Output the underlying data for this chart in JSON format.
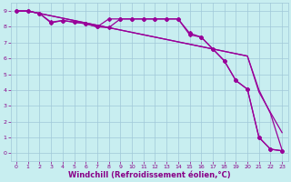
{
  "xlabel": "Windchill (Refroidissement éolien,°C)",
  "xlim": [
    -0.5,
    23.5
  ],
  "ylim": [
    -0.5,
    9.5
  ],
  "xticks": [
    0,
    1,
    2,
    3,
    4,
    5,
    6,
    7,
    8,
    9,
    10,
    11,
    12,
    13,
    14,
    15,
    16,
    17,
    18,
    19,
    20,
    21,
    22,
    23
  ],
  "yticks": [
    0,
    1,
    2,
    3,
    4,
    5,
    6,
    7,
    8,
    9
  ],
  "background_color": "#c8eef0",
  "grid_color": "#a0c8d8",
  "line_color": "#990099",
  "marker": "D",
  "markersize": 2.0,
  "linewidth": 0.9,
  "tick_fontsize": 4.5,
  "label_fontsize": 6.0,
  "tick_color": "#880088",
  "label_color": "#880088",
  "line_straight1": [
    9,
    9,
    8.85,
    8.7,
    8.55,
    8.4,
    8.25,
    8.1,
    7.95,
    7.8,
    7.65,
    7.5,
    7.35,
    7.2,
    7.05,
    6.9,
    6.75,
    6.6,
    6.45,
    6.3,
    6.15,
    3.87,
    2.57,
    1.3
  ],
  "line_straight2": [
    9,
    9,
    8.85,
    8.7,
    8.55,
    8.4,
    8.25,
    8.1,
    7.95,
    7.8,
    7.65,
    7.5,
    7.35,
    7.2,
    7.05,
    6.9,
    6.75,
    6.6,
    6.45,
    6.3,
    6.15,
    4.0,
    2.5,
    0.2
  ],
  "line_marker1": [
    9,
    9,
    8.85,
    8.25,
    8.4,
    8.3,
    8.2,
    8.0,
    8.5,
    8.5,
    8.5,
    8.5,
    8.5,
    8.5,
    8.5,
    7.6,
    7.35,
    6.6,
    5.85,
    4.6,
    4.05,
    1.0,
    0.25,
    0.15
  ],
  "line_marker2": [
    9,
    9,
    8.85,
    8.3,
    8.4,
    8.3,
    8.2,
    8.0,
    7.95,
    8.5,
    8.5,
    8.5,
    8.5,
    8.5,
    8.5,
    7.5,
    7.35,
    6.6,
    5.85,
    4.6,
    4.05,
    1.0,
    0.25,
    0.15
  ]
}
